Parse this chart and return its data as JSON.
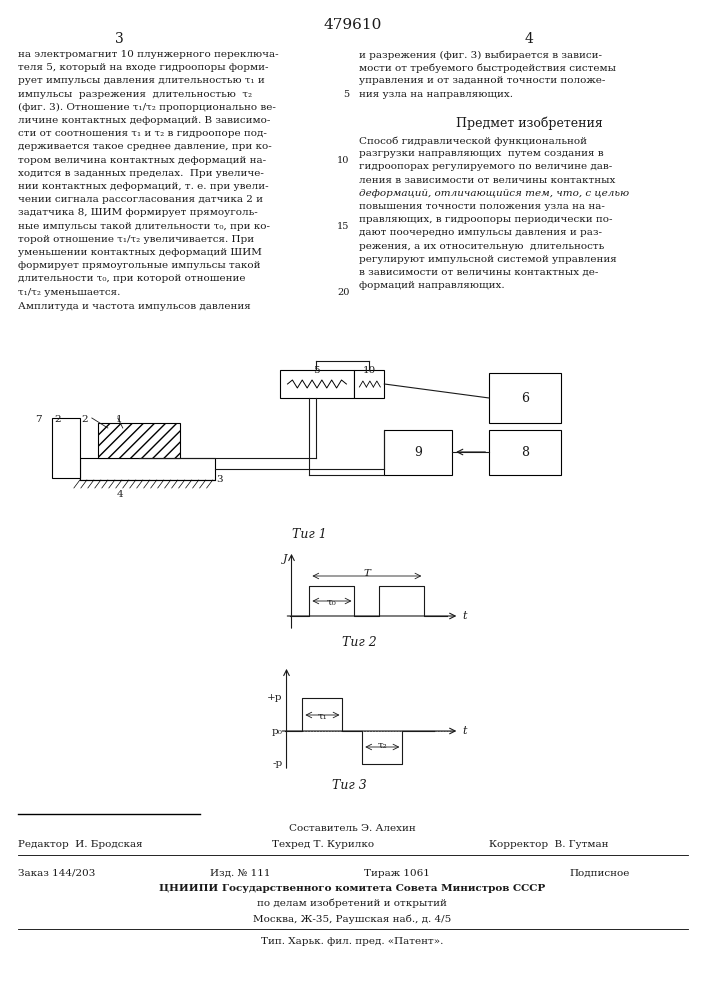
{
  "patent_number": "479610",
  "col_left_num": "3",
  "col_right_num": "4",
  "left_text_lines": [
    "на электромагнит 10 плунжерного переключа-",
    "теля 5, который на входе гидроопоры форми-",
    "рует импульсы давления длительностью τ₁ и",
    "импульсы  разрежения  длительностью  τ₂",
    "(фиг. 3). Отношение τ₁/τ₂ пропорционально ве-",
    "личине контактных деформаций. В зависимо-",
    "сти от соотношения τ₁ и τ₂ в гидроопоре под-",
    "держивается такое среднее давление, при ко-",
    "тором величина контактных деформаций на-",
    "ходится в заданных пределах.  При увеличе-",
    "нии контактных деформаций, т. е. при увели-",
    "чении сигнала рассогласования датчика 2 и",
    "задатчика 8, ШИМ формирует прямоуголь-",
    "ные импульсы такой длительности τ₀, при ко-",
    "торой отношение τ₁/τ₂ увеличивается. При",
    "уменьшении контактных деформаций ШИМ",
    "формирует прямоугольные импульсы такой",
    "длительности τ₀, при которой отношение",
    "τ₁/τ₂ уменьшается."
  ],
  "left_text_extra": "Амплитуда и частота импульсов давления",
  "right_text_lines": [
    "и разрежения (фиг. 3) выбирается в зависи-",
    "мости от требуемого быстродействия системы",
    "управления и от заданной точности положе-",
    "ния узла на направляющих."
  ],
  "predmet_title": "Предмет изобретения",
  "right_text2_lines": [
    "Способ гидравлической функциональной",
    "разгрузки направляющих  путем создания в",
    "гидроопорах регулируемого по величине дав-",
    "ления в зависимости от величины контактных",
    "деформаций, отличающийся тем, что, с целью",
    "повышения точности положения узла на на-",
    "правляющих, в гидроопоры периодически по-",
    "дают поочередно импульсы давления и раз-",
    "режения, а их относительную  длительность",
    "регулируют импульсной системой управления",
    "в зависимости от величины контактных де-",
    "формаций направляющих."
  ],
  "fig1_label": "Τиг 1",
  "fig2_label": "Τиг 2",
  "fig3_label": "Τиг 3",
  "footer_line1": "Составитель Э. Алехин",
  "footer_editor": "Редактор  И. Бродская",
  "footer_techred": "Техред Т. Курилко",
  "footer_corrector": "Корректор  В. Гутман",
  "footer_order": "Заказ 144/203",
  "footer_ed": "Изд. № 111",
  "footer_tirazh": "Тираж 1061",
  "footer_podpisnoe": "Подписное",
  "footer_tsniip": "ЦНИИПИ Государственного комитета Совета Министров СССР",
  "footer_po": "по делам изобретений и открытий",
  "footer_moscow": "Москва, Ж-35, Раушская наб., д. 4/5",
  "footer_tip": "Тип. Харьк. фил. пред. «Патент».",
  "bg_color": "#ffffff",
  "text_color": "#1a1a1a",
  "line_color": "#1a1a1a"
}
